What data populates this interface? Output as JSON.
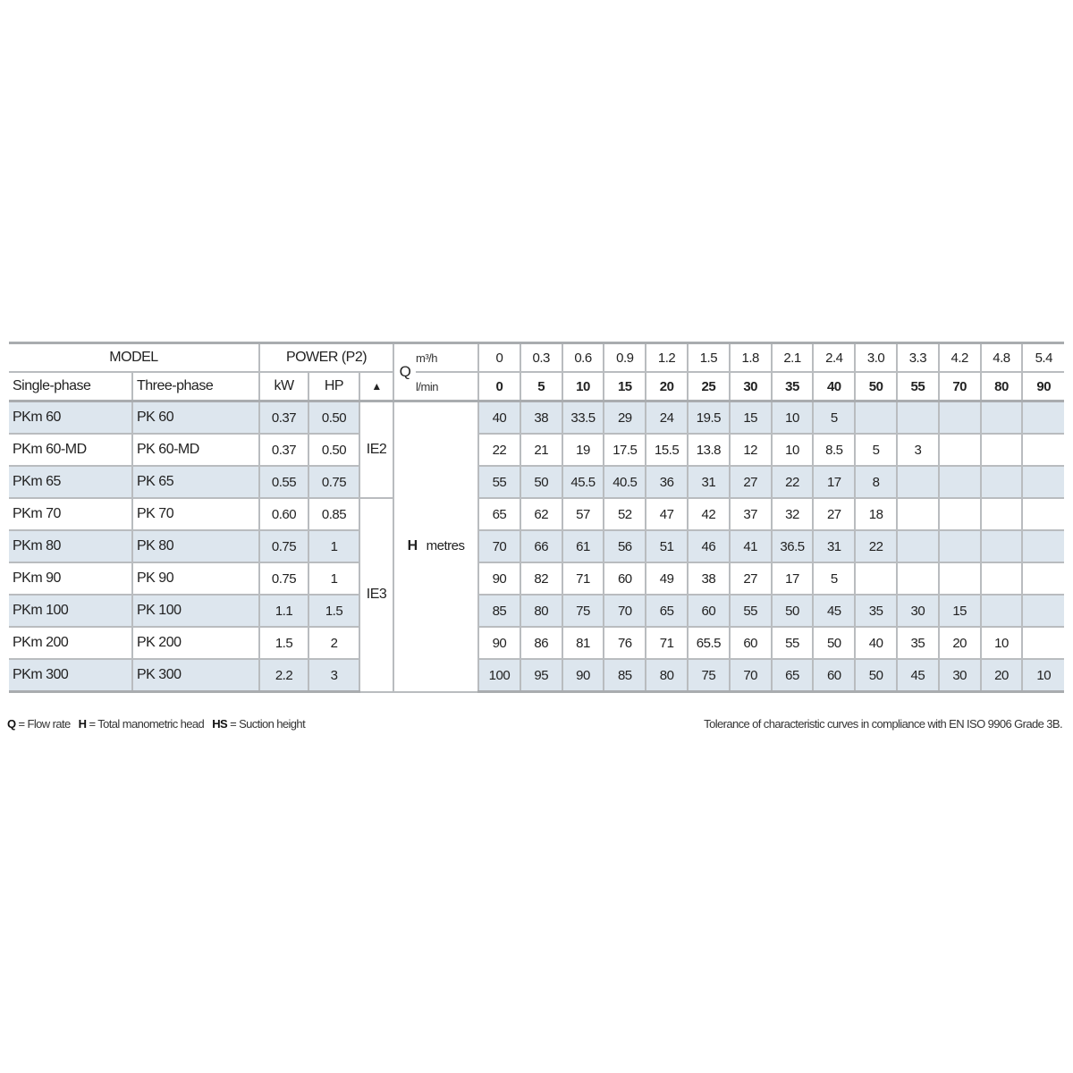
{
  "header": {
    "model": "MODEL",
    "single_phase": "Single-phase",
    "three_phase": "Three-phase",
    "power": "POWER (P2)",
    "kw": "kW",
    "hp": "HP",
    "efficiency_symbol": "▲",
    "q_label": "Q",
    "unit_m3h": "m³/h",
    "unit_lmin": "l/min",
    "flow_m3h": [
      "0",
      "0.3",
      "0.6",
      "0.9",
      "1.2",
      "1.5",
      "1.8",
      "2.1",
      "2.4",
      "3.0",
      "3.3",
      "4.2",
      "4.8",
      "5.4"
    ],
    "flow_lmin": [
      "0",
      "5",
      "10",
      "15",
      "20",
      "25",
      "30",
      "35",
      "40",
      "50",
      "55",
      "70",
      "80",
      "90"
    ]
  },
  "h_label": "H",
  "h_unit": "metres",
  "efficiency_classes": [
    {
      "label": "IE2",
      "rows": 3
    },
    {
      "label": "IE3",
      "rows": 6
    }
  ],
  "rows": [
    {
      "single": "PKm 60",
      "three": "PK 60",
      "kw": "0.37",
      "hp": "0.50",
      "shaded": true,
      "h": [
        "40",
        "38",
        "33.5",
        "29",
        "24",
        "19.5",
        "15",
        "10",
        "5",
        "",
        "",
        "",
        "",
        ""
      ]
    },
    {
      "single": "PKm 60-MD",
      "three": "PK 60-MD",
      "kw": "0.37",
      "hp": "0.50",
      "shaded": false,
      "h": [
        "22",
        "21",
        "19",
        "17.5",
        "15.5",
        "13.8",
        "12",
        "10",
        "8.5",
        "5",
        "3",
        "",
        "",
        ""
      ]
    },
    {
      "single": "PKm 65",
      "three": "PK 65",
      "kw": "0.55",
      "hp": "0.75",
      "shaded": true,
      "h": [
        "55",
        "50",
        "45.5",
        "40.5",
        "36",
        "31",
        "27",
        "22",
        "17",
        "8",
        "",
        "",
        "",
        ""
      ]
    },
    {
      "single": "PKm 70",
      "three": "PK 70",
      "kw": "0.60",
      "hp": "0.85",
      "shaded": false,
      "h": [
        "65",
        "62",
        "57",
        "52",
        "47",
        "42",
        "37",
        "32",
        "27",
        "18",
        "",
        "",
        "",
        ""
      ]
    },
    {
      "single": "PKm 80",
      "three": "PK 80",
      "kw": "0.75",
      "hp": "1",
      "shaded": true,
      "h": [
        "70",
        "66",
        "61",
        "56",
        "51",
        "46",
        "41",
        "36.5",
        "31",
        "22",
        "",
        "",
        "",
        ""
      ]
    },
    {
      "single": "PKm 90",
      "three": "PK 90",
      "kw": "0.75",
      "hp": "1",
      "shaded": false,
      "h": [
        "90",
        "82",
        "71",
        "60",
        "49",
        "38",
        "27",
        "17",
        "5",
        "",
        "",
        "",
        "",
        ""
      ]
    },
    {
      "single": "PKm 100",
      "three": "PK 100",
      "kw": "1.1",
      "hp": "1.5",
      "shaded": true,
      "h": [
        "85",
        "80",
        "75",
        "70",
        "65",
        "60",
        "55",
        "50",
        "45",
        "35",
        "30",
        "15",
        "",
        ""
      ]
    },
    {
      "single": "PKm 200",
      "three": "PK 200",
      "kw": "1.5",
      "hp": "2",
      "shaded": false,
      "h": [
        "90",
        "86",
        "81",
        "76",
        "71",
        "65.5",
        "60",
        "55",
        "50",
        "40",
        "35",
        "20",
        "10",
        ""
      ]
    },
    {
      "single": "PKm 300",
      "three": "PK 300",
      "kw": "2.2",
      "hp": "3",
      "shaded": true,
      "h": [
        "100",
        "95",
        "90",
        "85",
        "80",
        "75",
        "70",
        "65",
        "60",
        "50",
        "45",
        "30",
        "20",
        "10"
      ]
    }
  ],
  "footer": {
    "q_key": "Q",
    "q_def": "= Flow rate",
    "h_key": "H",
    "h_def": "= Total manometric head",
    "hs_key": "HS",
    "hs_def": "= Suction height",
    "tolerance": "Tolerance of characteristic curves in compliance with EN ISO 9906 Grade 3B."
  },
  "colors": {
    "shaded_row": "#dde6ee",
    "border": "#b9bcbf"
  }
}
